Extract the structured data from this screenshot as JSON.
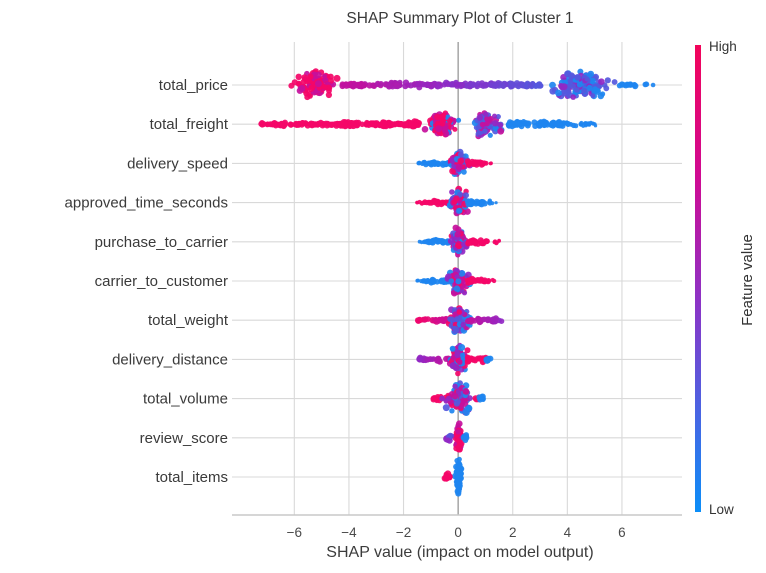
{
  "title": "SHAP Summary Plot of Cluster 1",
  "xlabel": "SHAP value (impact on model output)",
  "colorbar": {
    "high_label": "High",
    "low_label": "Low",
    "title": "Feature value",
    "stops": [
      [
        "0%",
        "#f2045a"
      ],
      [
        "28%",
        "#d00a92"
      ],
      [
        "55%",
        "#8c33c6"
      ],
      [
        "78%",
        "#4b63e2"
      ],
      [
        "100%",
        "#0b8ef8"
      ]
    ]
  },
  "palette": {
    "pink": "#f40668",
    "magenta": "#c5109c",
    "purple": "#9128c4",
    "violet": "#5558dd",
    "blue": "#1e86f0"
  },
  "style_colors": {
    "grid": "#d9d9d9",
    "zero_line": "#9a9a9a",
    "axis_line": "#c8c8c8",
    "tick_text": "#4a4a4a",
    "label_text": "#3a3a3a"
  },
  "chart_data": {
    "type": "beeswarm",
    "title": "SHAP Summary Plot of Cluster 1",
    "xlabel": "SHAP value (impact on model output)",
    "xlim": [
      -8.1,
      8.2
    ],
    "xticks": [
      {
        "v": -6,
        "label": "−6"
      },
      {
        "v": -4,
        "label": "−4"
      },
      {
        "v": -2,
        "label": "−2"
      },
      {
        "v": 0,
        "label": "0"
      },
      {
        "v": 2,
        "label": "2"
      },
      {
        "v": 4,
        "label": "4"
      },
      {
        "v": 6,
        "label": "6"
      }
    ],
    "grid": "on",
    "zero_line": true,
    "legend_position": "right-colorbar",
    "features": [
      {
        "name": "total_price",
        "components": [
          {
            "kind": "blob",
            "from": -6.25,
            "to": -4.25,
            "spread": 15,
            "n": 120,
            "colors": [
              "pink",
              "pink",
              "pink",
              "magenta"
            ]
          },
          {
            "kind": "strip",
            "from": -4.35,
            "to": -0.5,
            "th": 1.6,
            "n": 100,
            "lerp": [
              "magenta",
              "purple"
            ]
          },
          {
            "kind": "strip",
            "from": -0.5,
            "to": 3.05,
            "th": 1.6,
            "n": 95,
            "lerp": [
              "purple",
              "violet"
            ]
          },
          {
            "kind": "blob",
            "from": 3.0,
            "to": 5.95,
            "spread": 16,
            "n": 130,
            "colors": [
              "violet",
              "violet",
              "blue",
              "purple",
              "blue"
            ]
          },
          {
            "kind": "strip",
            "from": 5.9,
            "to": 7.4,
            "th": 1.2,
            "n": 14,
            "colors": [
              "blue"
            ],
            "taper": "right"
          }
        ]
      },
      {
        "name": "total_freight",
        "components": [
          {
            "kind": "strip",
            "from": -7.25,
            "to": -1.3,
            "th": 1.4,
            "n": 170,
            "colors": [
              "pink"
            ]
          },
          {
            "kind": "blob",
            "from": -4.45,
            "to": -3.7,
            "spread": 3.5,
            "n": 18,
            "colors": [
              "pink"
            ]
          },
          {
            "kind": "blob",
            "from": -2.95,
            "to": -2.45,
            "spread": 3,
            "n": 12,
            "colors": [
              "pink"
            ]
          },
          {
            "kind": "blob",
            "from": -1.95,
            "to": -1.35,
            "spread": 4,
            "n": 16,
            "colors": [
              "pink"
            ]
          },
          {
            "kind": "blob",
            "from": -1.35,
            "to": 0.2,
            "spread": 13,
            "n": 95,
            "colors": [
              "pink",
              "pink",
              "pink",
              "magenta",
              "magenta",
              "blue"
            ]
          },
          {
            "kind": "blob",
            "from": 0.2,
            "to": 1.85,
            "spread": 14,
            "n": 95,
            "colors": [
              "violet",
              "purple",
              "violet",
              "blue",
              "magenta"
            ]
          },
          {
            "kind": "strip",
            "from": 1.85,
            "to": 5.1,
            "th": 1.9,
            "n": 100,
            "colors": [
              "blue"
            ],
            "taper": "right"
          }
        ]
      },
      {
        "name": "delivery_speed",
        "components": [
          {
            "kind": "strip",
            "from": -1.6,
            "to": -0.3,
            "th": 1.4,
            "n": 34,
            "colors": [
              "blue"
            ],
            "taper": "left"
          },
          {
            "kind": "blob",
            "from": -0.45,
            "to": 0.5,
            "spread": 13,
            "n": 75,
            "colors": [
              "purple",
              "magenta",
              "pink",
              "violet",
              "blue"
            ]
          },
          {
            "kind": "strip",
            "from": 0.35,
            "to": 1.25,
            "th": 1.7,
            "n": 26,
            "colors": [
              "pink"
            ],
            "taper": "right"
          }
        ]
      },
      {
        "name": "approved_time_seconds",
        "components": [
          {
            "kind": "strip",
            "from": -1.55,
            "to": -0.3,
            "th": 1.4,
            "n": 34,
            "colors": [
              "pink"
            ],
            "taper": "left"
          },
          {
            "kind": "blob",
            "from": -0.5,
            "to": 0.5,
            "spread": 14,
            "n": 85,
            "colors": [
              "magenta",
              "pink",
              "purple",
              "blue",
              "violet"
            ]
          },
          {
            "kind": "strip",
            "from": 0.35,
            "to": 1.4,
            "th": 1.7,
            "n": 28,
            "colors": [
              "blue"
            ],
            "taper": "right"
          }
        ]
      },
      {
        "name": "purchase_to_carrier",
        "components": [
          {
            "kind": "strip",
            "from": -1.45,
            "to": -0.3,
            "th": 1.4,
            "n": 32,
            "colors": [
              "blue"
            ],
            "taper": "left"
          },
          {
            "kind": "blob",
            "from": -0.45,
            "to": 0.5,
            "spread": 15,
            "n": 85,
            "colors": [
              "blue",
              "violet",
              "purple",
              "pink",
              "magenta"
            ]
          },
          {
            "kind": "strip",
            "from": 0.35,
            "to": 1.5,
            "th": 1.7,
            "n": 30,
            "colors": [
              "pink"
            ],
            "taper": "right"
          }
        ]
      },
      {
        "name": "carrier_to_customer",
        "components": [
          {
            "kind": "strip",
            "from": -1.5,
            "to": -0.3,
            "th": 1.4,
            "n": 32,
            "colors": [
              "blue"
            ],
            "taper": "left"
          },
          {
            "kind": "blob",
            "from": -0.45,
            "to": 0.5,
            "spread": 15,
            "n": 85,
            "colors": [
              "blue",
              "pink",
              "magenta",
              "violet",
              "purple"
            ]
          },
          {
            "kind": "strip",
            "from": 0.35,
            "to": 1.45,
            "th": 1.7,
            "n": 29,
            "colors": [
              "pink"
            ],
            "taper": "right"
          }
        ]
      },
      {
        "name": "total_weight",
        "components": [
          {
            "kind": "strip",
            "from": -1.5,
            "to": -0.3,
            "th": 1.6,
            "n": 34,
            "lerp": [
              "pink",
              "magenta"
            ]
          },
          {
            "kind": "blob",
            "from": -0.5,
            "to": 0.55,
            "spread": 16,
            "n": 95,
            "colors": [
              "pink",
              "magenta",
              "blue",
              "purple",
              "violet"
            ]
          },
          {
            "kind": "strip",
            "from": 0.35,
            "to": 1.6,
            "th": 1.7,
            "n": 32,
            "lerp": [
              "magenta",
              "purple"
            ]
          }
        ]
      },
      {
        "name": "delivery_distance",
        "components": [
          {
            "kind": "strip",
            "from": -1.45,
            "to": -0.3,
            "th": 1.6,
            "n": 32,
            "lerp": [
              "purple",
              "magenta"
            ]
          },
          {
            "kind": "blob",
            "from": -0.5,
            "to": 0.5,
            "spread": 15,
            "n": 90,
            "colors": [
              "pink",
              "blue",
              "magenta",
              "purple"
            ]
          },
          {
            "kind": "strip",
            "from": 0.35,
            "to": 1.05,
            "th": 1.8,
            "n": 20,
            "colors": [
              "pink"
            ]
          },
          {
            "kind": "blob",
            "from": 0.95,
            "to": 1.3,
            "spread": 2.5,
            "n": 7,
            "colors": [
              "blue"
            ]
          }
        ]
      },
      {
        "name": "total_volume",
        "components": [
          {
            "kind": "strip",
            "from": -0.95,
            "to": -0.4,
            "th": 2,
            "n": 12,
            "colors": [
              "pink"
            ]
          },
          {
            "kind": "blob",
            "from": -0.6,
            "to": 0.65,
            "spread": 17,
            "n": 100,
            "colors": [
              "pink",
              "magenta",
              "purple",
              "blue",
              "violet"
            ]
          },
          {
            "kind": "strip",
            "from": 0.55,
            "to": 0.8,
            "th": 2,
            "n": 6,
            "colors": [
              "pink"
            ]
          },
          {
            "kind": "blob",
            "from": 0.72,
            "to": 1.0,
            "spread": 2.5,
            "n": 7,
            "colors": [
              "blue"
            ]
          }
        ]
      },
      {
        "name": "review_score",
        "components": [
          {
            "kind": "blob",
            "from": -0.13,
            "to": 0.17,
            "spread": 15,
            "n": 55,
            "colors": [
              "pink",
              "pink",
              "magenta"
            ]
          },
          {
            "kind": "blob",
            "from": -0.52,
            "to": -0.16,
            "spread": 4,
            "n": 12,
            "colors": [
              "purple",
              "violet"
            ]
          },
          {
            "kind": "blob",
            "from": 0.13,
            "to": 0.45,
            "spread": 3.5,
            "n": 8,
            "colors": [
              "blue"
            ]
          }
        ]
      },
      {
        "name": "total_items",
        "components": [
          {
            "kind": "blob",
            "from": -0.16,
            "to": 0.18,
            "spread": 20,
            "n": 65,
            "colors": [
              "blue"
            ]
          },
          {
            "kind": "blob",
            "from": -0.6,
            "to": -0.16,
            "spread": 4.5,
            "n": 13,
            "colors": [
              "pink"
            ]
          }
        ]
      }
    ]
  }
}
